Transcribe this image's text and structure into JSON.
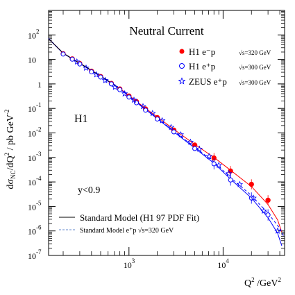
{
  "chart_data": {
    "type": "scatter",
    "title": "Neutral Current",
    "xlabel": "Q^2 /GeV^2",
    "ylabel": "dσ_NC/dQ^2 / pb GeV^-2",
    "x_scale": "log",
    "y_scale": "log",
    "xlim": [
      140,
      45000
    ],
    "ylim": [
      1e-07,
      1000
    ],
    "x_tick_labels": [
      {
        "value": 1000,
        "base": "10",
        "exp": "3"
      },
      {
        "value": 10000,
        "base": "10",
        "exp": "4"
      }
    ],
    "y_tick_labels": [
      {
        "value": 100,
        "base": "10",
        "exp": "2"
      },
      {
        "value": 10,
        "base": "10",
        "exp": ""
      },
      {
        "value": 1,
        "base": "1",
        "exp": ""
      },
      {
        "value": 0.1,
        "base": "10",
        "exp": "-1"
      },
      {
        "value": 0.01,
        "base": "10",
        "exp": "-2"
      },
      {
        "value": 0.001,
        "base": "10",
        "exp": "-3"
      },
      {
        "value": 0.0001,
        "base": "10",
        "exp": "-4"
      },
      {
        "value": 1e-05,
        "base": "10",
        "exp": "-5"
      },
      {
        "value": 1e-06,
        "base": "10",
        "exp": "-6"
      },
      {
        "value": 1e-07,
        "base": "10",
        "exp": "-7"
      }
    ],
    "annotations": {
      "experiment": "H1",
      "cut": "y<0.9"
    },
    "series": [
      {
        "name": "H1 e⁻p",
        "energy": "√s=320 GeV",
        "marker": "filled-circle",
        "color": "#ff0000",
        "x": [
          200,
          250,
          300,
          400,
          500,
          650,
          800,
          1000,
          1200,
          1500,
          2000,
          3000,
          5000,
          8000,
          12000,
          20000,
          30000
        ],
        "y": [
          17,
          10.5,
          6.8,
          3.3,
          2.0,
          1.05,
          0.62,
          0.32,
          0.19,
          0.095,
          0.042,
          0.013,
          0.0032,
          0.00095,
          0.00028,
          8e-05,
          1.8e-05
        ]
      },
      {
        "name": "H1 e⁺p",
        "energy": "√s=300 GeV",
        "marker": "open-circle",
        "color": "#0000ff",
        "x": [
          200,
          250,
          300,
          400,
          500,
          650,
          800,
          1000,
          1200,
          1500,
          2000,
          3000,
          5000,
          8000,
          12000,
          20000,
          30000
        ],
        "y": [
          16.5,
          10.2,
          6.5,
          3.1,
          1.9,
          1.0,
          0.58,
          0.29,
          0.17,
          0.085,
          0.037,
          0.011,
          0.0023,
          0.00055,
          0.00012,
          2.2e-05,
          4.5e-06
        ]
      },
      {
        "name": "ZEUS e⁺p",
        "energy": "√s=300 GeV",
        "marker": "open-star",
        "color": "#0000ff",
        "x": [
          280,
          350,
          450,
          560,
          710,
          900,
          1130,
          1410,
          1780,
          2250,
          2800,
          3550,
          4500,
          5600,
          7100,
          9000,
          11500,
          15000,
          21000,
          27000,
          38000
        ],
        "y": [
          8.0,
          4.5,
          2.4,
          1.4,
          0.74,
          0.4,
          0.22,
          0.12,
          0.063,
          0.032,
          0.017,
          0.0085,
          0.0042,
          0.0022,
          0.0011,
          0.00048,
          0.00022,
          8e-05,
          2.2e-05,
          6.5e-06,
          1e-06
        ]
      }
    ],
    "curves": [
      {
        "name": "Standard Model (H1 97 PDF Fit)",
        "style": "solid",
        "color_em": "#ff0000",
        "color_ep": "#0000ff",
        "x": [
          140,
          200,
          300,
          500,
          800,
          1000,
          1500,
          2000,
          3000,
          5000,
          8000,
          12000,
          20000,
          30000,
          38000,
          42000
        ],
        "y_em": [
          70,
          18,
          7.0,
          2.1,
          0.65,
          0.34,
          0.1,
          0.045,
          0.014,
          0.0034,
          0.001,
          0.0003,
          6.5e-05,
          1.2e-05,
          2.8e-06,
          9e-07
        ],
        "y_ep": [
          70,
          17.5,
          6.8,
          2.0,
          0.62,
          0.31,
          0.09,
          0.038,
          0.011,
          0.0024,
          0.00058,
          0.00013,
          2.2e-05,
          3.5e-06,
          8e-07,
          2.5e-07
        ]
      },
      {
        "name": "Standard Model e⁺p √s=320 GeV",
        "style": "dashed",
        "color": "#0000ff",
        "x": [
          140,
          200,
          300,
          500,
          800,
          1000,
          1500,
          2000,
          3000,
          5000,
          8000,
          12000,
          20000,
          30000,
          40000,
          44000
        ],
        "y": [
          72,
          18,
          7.0,
          2.1,
          0.64,
          0.32,
          0.093,
          0.04,
          0.012,
          0.0026,
          0.00065,
          0.00015,
          2.8e-05,
          5.2e-06,
          1.3e-06,
          6e-07
        ]
      }
    ],
    "legend": {
      "placement": "top-right / bottom-left",
      "sm_label": "Standard Model (H1 97 PDF Fit)",
      "sm_ep_label": "Standard Model e⁺p √s=320 GeV"
    }
  }
}
